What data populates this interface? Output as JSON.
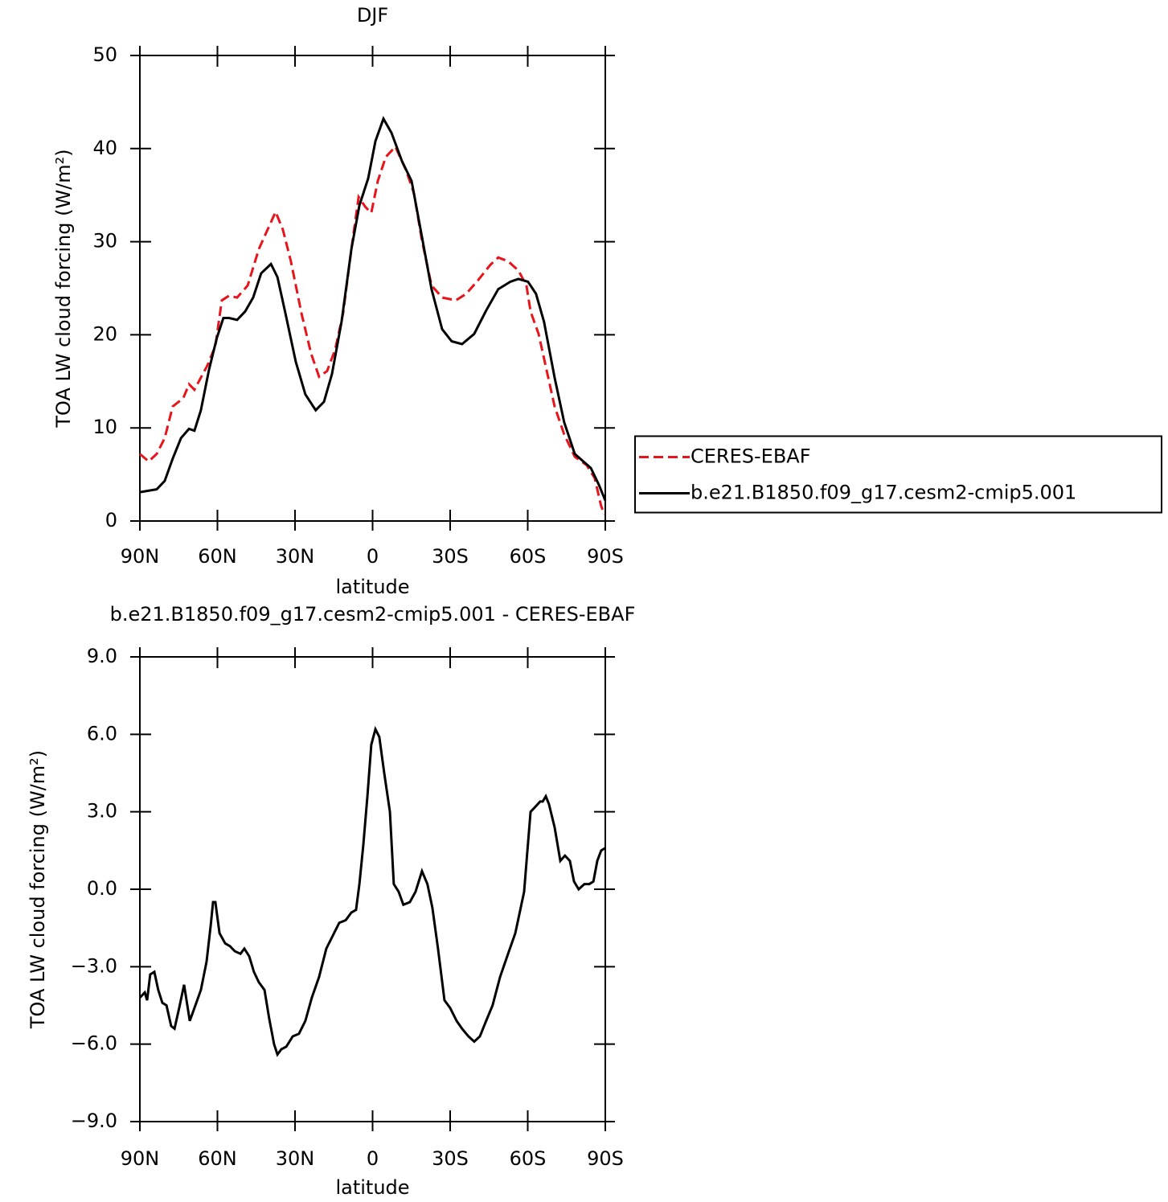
{
  "chart_data": [
    {
      "type": "line",
      "title": "DJF",
      "x_label": "latitude",
      "y_label": "TOA LW cloud forcing (W/m²)",
      "xlim": [
        90,
        -90
      ],
      "xticks": [
        {
          "value": 90,
          "label": "90N"
        },
        {
          "value": 60,
          "label": "60N"
        },
        {
          "value": 30,
          "label": "30N"
        },
        0,
        {
          "value": -30,
          "label": "30S"
        },
        {
          "value": -60,
          "label": "60S"
        },
        {
          "value": -90,
          "label": "90S"
        }
      ],
      "ylim": [
        0,
        50
      ],
      "yticks": [
        0,
        10,
        20,
        30,
        40,
        50
      ],
      "legend": "right",
      "series": [
        {
          "name": "CERES-EBAF",
          "color": "#e8141b",
          "line_style": "dashed",
          "x": [
            90,
            86.6,
            83.5,
            80.4,
            77.3,
            73.2,
            71,
            68.9,
            63.9,
            60.8,
            58.3,
            55.5,
            52.4,
            48.3,
            44,
            40.6,
            37.5,
            34.7,
            31.6,
            27.5,
            23.8,
            20.7,
            17.6,
            14.5,
            11.4,
            8.2,
            5.4,
            2.7,
            0.5,
            -2,
            -5.1,
            -8.8,
            -12.9,
            -16,
            -19.1,
            -22.8,
            -26.9,
            -32.2,
            -36.2,
            -40.9,
            -45.5,
            -48.6,
            -52.4,
            -56.4,
            -59.5,
            -61.1,
            -64.2,
            -67.3,
            -70.4,
            -74.1,
            -78.2,
            -82.8,
            -85.9,
            -88.4,
            -89.7
          ],
          "values": [
            7.2,
            6.4,
            7.2,
            8.9,
            12.3,
            13.2,
            14.7,
            14.1,
            16.7,
            18.8,
            23.7,
            24.2,
            24.0,
            25.3,
            29.2,
            31.3,
            33.2,
            31.3,
            27.9,
            22.3,
            18.0,
            15.5,
            16.1,
            18.4,
            22.3,
            29.2,
            34.8,
            33.7,
            33.1,
            36.5,
            39.1,
            40.2,
            37.7,
            35.2,
            30.1,
            25.3,
            24.0,
            23.7,
            24.4,
            25.9,
            27.5,
            28.3,
            27.9,
            26.9,
            25.3,
            22.5,
            20.1,
            16.2,
            12.3,
            9.3,
            6.9,
            6.0,
            4.6,
            1.6,
            0.7
          ]
        },
        {
          "name": "b.e21.B1850.f09_g17.cesm2-cmip5.001",
          "color": "#000000",
          "line_style": "solid",
          "x": [
            90,
            83.5,
            80.4,
            77.3,
            74.1,
            71,
            68.9,
            66.4,
            63.3,
            60.2,
            57.7,
            55.5,
            52.4,
            49.3,
            46.2,
            43.1,
            39.3,
            36.8,
            33.7,
            29.7,
            26,
            22,
            18.8,
            15.7,
            12,
            8.2,
            5.1,
            1.7,
            -1.1,
            -4.2,
            -7.3,
            -11.3,
            -15.1,
            -19.1,
            -22.8,
            -26.9,
            -30.6,
            -34.6,
            -39.3,
            -43.9,
            -48.6,
            -53.3,
            -56.4,
            -60.1,
            -63.2,
            -66.3,
            -70.4,
            -74.1,
            -78.2,
            -84.4,
            -87.5,
            -90
          ],
          "values": [
            3.1,
            3.4,
            4.3,
            6.7,
            8.9,
            9.9,
            9.7,
            11.9,
            16.2,
            19.7,
            21.8,
            21.8,
            21.6,
            22.5,
            24.0,
            26.6,
            27.6,
            26.2,
            22.3,
            17.1,
            13.6,
            11.9,
            12.8,
            15.8,
            21.4,
            29.2,
            33.9,
            36.8,
            40.8,
            43.2,
            41.7,
            38.7,
            36.5,
            30.5,
            24.9,
            20.6,
            19.3,
            19.0,
            20.1,
            22.6,
            24.9,
            25.7,
            26.0,
            25.7,
            24.4,
            21.4,
            15.4,
            10.6,
            7.2,
            5.7,
            3.9,
            2.2
          ]
        }
      ]
    },
    {
      "type": "line",
      "title": "b.e21.B1850.f09_g17.cesm2-cmip5.001 - CERES-EBAF",
      "x_label": "latitude",
      "y_label": "TOA LW cloud forcing (W/m²)",
      "xlim": [
        90,
        -90
      ],
      "xticks": [
        {
          "value": 90,
          "label": "90N"
        },
        {
          "value": 60,
          "label": "60N"
        },
        {
          "value": 30,
          "label": "30N"
        },
        0,
        {
          "value": -30,
          "label": "30S"
        },
        {
          "value": -60,
          "label": "60S"
        },
        {
          "value": -90,
          "label": "90S"
        }
      ],
      "ylim": [
        -9,
        9
      ],
      "yticks": [
        {
          "value": -9,
          "label": "−9.0"
        },
        {
          "value": -6,
          "label": "−6.0"
        },
        {
          "value": -3,
          "label": "−3.0"
        },
        {
          "value": 0,
          "label": "0.0"
        },
        {
          "value": 3,
          "label": "3.0"
        },
        {
          "value": 6,
          "label": "6.0"
        },
        {
          "value": 9,
          "label": "9.0"
        }
      ],
      "series": [
        {
          "color": "#000000",
          "line_style": "solid",
          "x": [
            90,
            88.1,
            87.2,
            86,
            84.4,
            82.9,
            81.3,
            79.7,
            77.9,
            76.6,
            74.8,
            72.9,
            70.7,
            68.9,
            66.4,
            64.2,
            62.6,
            61.7,
            60.8,
            59.2,
            57,
            55.2,
            53.3,
            51.1,
            49.6,
            47.7,
            45.9,
            44,
            41.8,
            40,
            38.1,
            36.8,
            35.3,
            33.4,
            30.9,
            28.5,
            26,
            23.5,
            20.7,
            17.9,
            15.4,
            12.9,
            10.4,
            8.2,
            6.4,
            5.1,
            3.6,
            2,
            0.5,
            -1.1,
            -2.6,
            -4.5,
            -6.7,
            -8.2,
            -10.1,
            -11.9,
            -14.4,
            -16.6,
            -19.1,
            -21.2,
            -23.1,
            -25.3,
            -27.8,
            -30,
            -32.5,
            -34.6,
            -37.1,
            -39.3,
            -41.5,
            -43.9,
            -46.4,
            -49.3,
            -52.4,
            -55.2,
            -58.6,
            -59.8,
            -61.1,
            -63,
            -64.8,
            -65.8,
            -67,
            -68.2,
            -70.4,
            -72.6,
            -74.4,
            -76.3,
            -77.9,
            -79.7,
            -81.9,
            -83.8,
            -85.4,
            -86.9,
            -88.4,
            -90
          ],
          "values": [
            -4.2,
            -4.0,
            -4.3,
            -3.3,
            -3.2,
            -3.9,
            -4.4,
            -4.5,
            -5.3,
            -5.4,
            -4.6,
            -3.7,
            -5.1,
            -4.6,
            -3.9,
            -2.8,
            -1.4,
            -0.5,
            -0.5,
            -1.7,
            -2.1,
            -2.2,
            -2.4,
            -2.5,
            -2.3,
            -2.6,
            -3.2,
            -3.6,
            -3.9,
            -5.0,
            -6.0,
            -6.4,
            -6.2,
            -6.1,
            -5.7,
            -5.6,
            -5.1,
            -4.2,
            -3.4,
            -2.3,
            -1.8,
            -1.3,
            -1.2,
            -0.9,
            -0.8,
            0.2,
            1.7,
            3.6,
            5.6,
            6.2,
            5.9,
            4.5,
            3.0,
            0.2,
            -0.1,
            -0.6,
            -0.5,
            -0.1,
            0.7,
            0.2,
            -0.7,
            -2.3,
            -4.3,
            -4.6,
            -5.1,
            -5.4,
            -5.7,
            -5.9,
            -5.7,
            -5.1,
            -4.5,
            -3.4,
            -2.5,
            -1.7,
            -0.1,
            1.4,
            3.0,
            3.2,
            3.4,
            3.4,
            3.6,
            3.3,
            2.4,
            1.1,
            1.3,
            1.1,
            0.3,
            0.0,
            0.2,
            0.2,
            0.3,
            1.1,
            1.5,
            1.6
          ]
        }
      ]
    }
  ]
}
